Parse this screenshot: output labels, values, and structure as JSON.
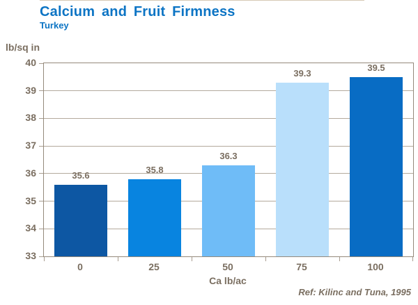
{
  "header": {
    "title": "Calcium and Fruit Firmness",
    "subtitle": "Turkey"
  },
  "chart_data": {
    "type": "bar",
    "title": "Calcium and Fruit Firmness",
    "subtitle": "Turkey",
    "xlabel": "Ca lb/ac",
    "ylabel": "lb/sq in",
    "categories": [
      "0",
      "25",
      "50",
      "75",
      "100"
    ],
    "values": [
      35.6,
      35.8,
      36.3,
      39.3,
      39.5
    ],
    "value_labels": [
      "35.6",
      "35.8",
      "36.3",
      "39.3",
      "39.5"
    ],
    "bar_colors": [
      "#0d57a3",
      "#0884e0",
      "#6fbcf7",
      "#b9dffb",
      "#086cc4"
    ],
    "ylim": [
      33,
      40
    ],
    "yticks": [
      33,
      34,
      35,
      36,
      37,
      38,
      39,
      40
    ],
    "grid": true,
    "legend": "none"
  },
  "footer": {
    "reference": "Ref: Kilinc and Tuna, 1995"
  },
  "colors": {
    "title_blue": "#0c74c4",
    "text_brown": "#7a6e60",
    "plot_border": "#94897b",
    "gridline": "#b3a99c",
    "background": "#ffffff"
  }
}
